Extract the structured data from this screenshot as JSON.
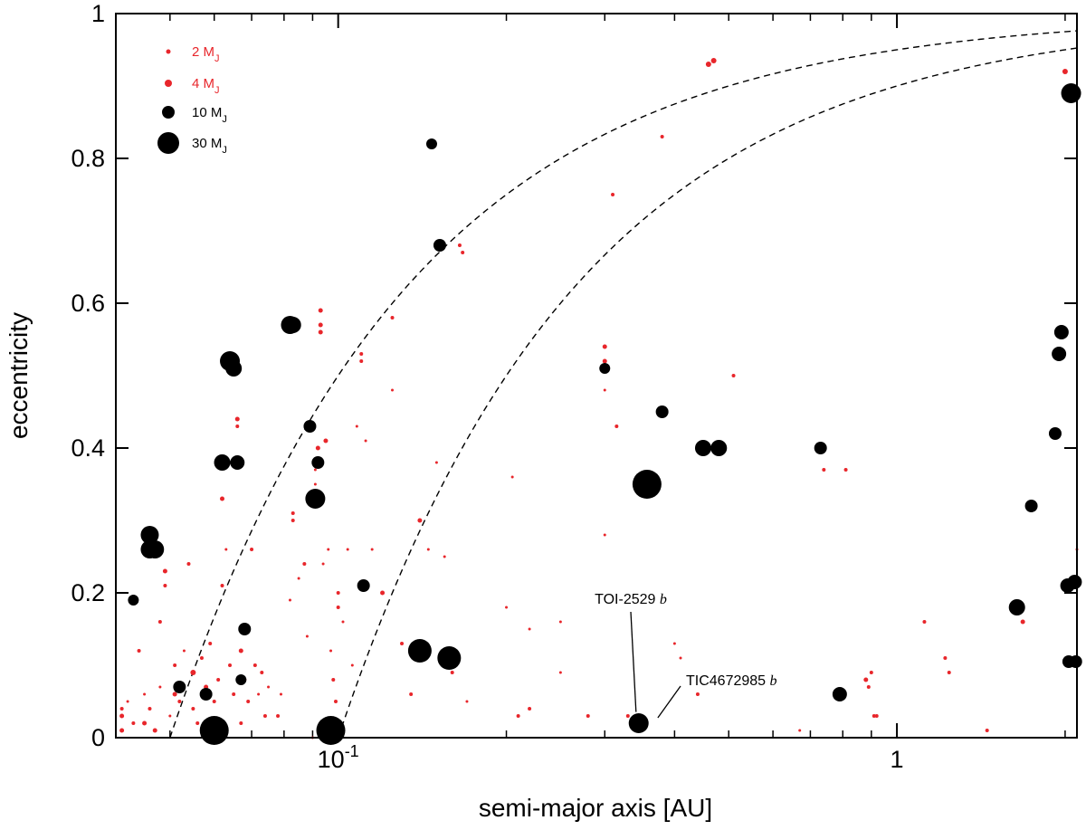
{
  "chart_data": {
    "type": "scatter",
    "xlabel": "semi-major axis [AU]",
    "ylabel": "eccentricity",
    "xscale": "log",
    "xlim": [
      0.04,
      2.1
    ],
    "ylim": [
      0,
      1
    ],
    "x_ticks": [
      {
        "value": 0.1,
        "base": "10",
        "exp": "-1"
      },
      {
        "value": 1,
        "base": "1",
        "exp": ""
      }
    ],
    "y_ticks": [
      {
        "value": 0,
        "label": "0"
      },
      {
        "value": 0.2,
        "label": "0.2"
      },
      {
        "value": 0.4,
        "label": "0.4"
      },
      {
        "value": 0.6,
        "label": "0.6"
      },
      {
        "value": 0.8,
        "label": "0.8"
      },
      {
        "value": 1,
        "label": "1"
      }
    ],
    "grid": false,
    "legend_position": "top-left",
    "colors": {
      "red": "#e8262b",
      "black": "#000000"
    },
    "legend": [
      {
        "mass": 2,
        "color": "red",
        "text": "2 M",
        "sub": "J"
      },
      {
        "mass": 4,
        "color": "red",
        "text": "4 M",
        "sub": "J"
      },
      {
        "mass": 10,
        "color": "black",
        "text": "10 M",
        "sub": "J"
      },
      {
        "mass": 30,
        "color": "black",
        "text": "30 M",
        "sub": "J"
      }
    ],
    "curves": [
      {
        "periastron_au": 0.05,
        "style": "dashed"
      },
      {
        "periastron_au": 0.1,
        "style": "dashed"
      }
    ],
    "annotations": [
      {
        "name": "TOI-2529",
        "letter": "b",
        "point": [
          0.34,
          0.028
        ]
      },
      {
        "name": "TIC4672985",
        "letter": "b",
        "point": [
          0.357,
          0.02
        ]
      }
    ],
    "series": [
      {
        "color": "red",
        "points": [
          [
            0.041,
            0.04,
            2
          ],
          [
            0.041,
            0.03,
            2.5
          ],
          [
            0.041,
            0.01,
            2.5
          ],
          [
            0.042,
            0.05,
            1.5
          ],
          [
            0.043,
            0.02,
            2
          ],
          [
            0.044,
            0.12,
            2
          ],
          [
            0.045,
            0.06,
            1.5
          ],
          [
            0.045,
            0.02,
            2.5
          ],
          [
            0.046,
            0.04,
            2
          ],
          [
            0.047,
            0.01,
            2.5
          ],
          [
            0.048,
            0.07,
            1.5
          ],
          [
            0.048,
            0.16,
            2
          ],
          [
            0.049,
            0.23,
            2.5
          ],
          [
            0.049,
            0.21,
            2
          ],
          [
            0.05,
            0.03,
            1.5
          ],
          [
            0.051,
            0.06,
            2.5
          ],
          [
            0.051,
            0.1,
            2
          ],
          [
            0.052,
            0.05,
            2
          ],
          [
            0.053,
            0.12,
            1.5
          ],
          [
            0.054,
            0.24,
            2
          ],
          [
            0.055,
            0.09,
            3
          ],
          [
            0.055,
            0.04,
            2
          ],
          [
            0.056,
            0.02,
            2
          ],
          [
            0.057,
            0.11,
            2
          ],
          [
            0.058,
            0.07,
            2.5
          ],
          [
            0.059,
            0.13,
            2
          ],
          [
            0.06,
            0.05,
            2
          ],
          [
            0.061,
            0.08,
            2
          ],
          [
            0.062,
            0.33,
            2.5
          ],
          [
            0.062,
            0.21,
            2
          ],
          [
            0.063,
            0.26,
            1.5
          ],
          [
            0.064,
            0.1,
            2
          ],
          [
            0.065,
            0.06,
            2
          ],
          [
            0.066,
            0.44,
            2.5
          ],
          [
            0.066,
            0.43,
            2
          ],
          [
            0.067,
            0.12,
            2.5
          ],
          [
            0.067,
            0.02,
            2
          ],
          [
            0.068,
            0.08,
            2
          ],
          [
            0.069,
            0.05,
            2
          ],
          [
            0.07,
            0.26,
            2
          ],
          [
            0.071,
            0.1,
            2
          ],
          [
            0.072,
            0.06,
            1.5
          ],
          [
            0.073,
            0.09,
            2
          ],
          [
            0.074,
            0.03,
            2
          ],
          [
            0.075,
            0.07,
            1.5
          ],
          [
            0.078,
            0.03,
            2
          ],
          [
            0.079,
            0.06,
            1.5
          ],
          [
            0.082,
            0.19,
            1.5
          ],
          [
            0.083,
            0.31,
            2
          ],
          [
            0.083,
            0.3,
            2
          ],
          [
            0.085,
            0.22,
            1.5
          ],
          [
            0.087,
            0.24,
            2
          ],
          [
            0.088,
            0.14,
            1.5
          ],
          [
            0.09,
            0.0,
            1.5
          ],
          [
            0.091,
            0.37,
            1.5
          ],
          [
            0.091,
            0.35,
            1.5
          ],
          [
            0.092,
            0.4,
            2.5
          ],
          [
            0.093,
            0.59,
            2.5
          ],
          [
            0.093,
            0.57,
            2.5
          ],
          [
            0.093,
            0.56,
            2.5
          ],
          [
            0.094,
            0.24,
            1.5
          ],
          [
            0.095,
            0.41,
            2.5
          ],
          [
            0.096,
            0.26,
            1.5
          ],
          [
            0.097,
            0.12,
            1.5
          ],
          [
            0.098,
            0.08,
            2
          ],
          [
            0.099,
            0.05,
            2
          ],
          [
            0.1,
            0.2,
            2
          ],
          [
            0.1,
            0.18,
            2
          ],
          [
            0.102,
            0.16,
            1.5
          ],
          [
            0.104,
            0.26,
            1.5
          ],
          [
            0.106,
            0.1,
            1.5
          ],
          [
            0.108,
            0.43,
            1.5
          ],
          [
            0.11,
            0.53,
            2
          ],
          [
            0.11,
            0.52,
            2
          ],
          [
            0.112,
            0.41,
            1.5
          ],
          [
            0.115,
            0.26,
            1.5
          ],
          [
            0.12,
            0.2,
            2.5
          ],
          [
            0.125,
            0.48,
            1.5
          ],
          [
            0.125,
            0.58,
            2
          ],
          [
            0.13,
            0.13,
            2
          ],
          [
            0.135,
            0.06,
            2
          ],
          [
            0.14,
            0.3,
            2.5
          ],
          [
            0.145,
            0.26,
            1.5
          ],
          [
            0.15,
            0.38,
            1.5
          ],
          [
            0.155,
            0.25,
            1.5
          ],
          [
            0.16,
            0.1,
            2
          ],
          [
            0.16,
            0.09,
            2
          ],
          [
            0.165,
            0.68,
            2
          ],
          [
            0.167,
            0.67,
            2
          ],
          [
            0.17,
            0.05,
            1.5
          ],
          [
            0.2,
            0.18,
            1.5
          ],
          [
            0.205,
            0.36,
            1.5
          ],
          [
            0.21,
            0.03,
            2
          ],
          [
            0.22,
            0.04,
            2
          ],
          [
            0.22,
            0.15,
            1.5
          ],
          [
            0.25,
            0.16,
            1.5
          ],
          [
            0.25,
            0.09,
            1.5
          ],
          [
            0.28,
            0.03,
            2
          ],
          [
            0.3,
            0.54,
            2.5
          ],
          [
            0.3,
            0.52,
            2.5
          ],
          [
            0.3,
            0.48,
            1.5
          ],
          [
            0.3,
            0.28,
            1.5
          ],
          [
            0.31,
            0.75,
            2
          ],
          [
            0.315,
            0.43,
            2
          ],
          [
            0.33,
            0.03,
            2
          ],
          [
            0.34,
            0.028,
            2
          ],
          [
            0.38,
            0.83,
            2
          ],
          [
            0.4,
            0.13,
            1.5
          ],
          [
            0.41,
            0.11,
            1.5
          ],
          [
            0.44,
            0.06,
            2
          ],
          [
            0.46,
            0.93,
            3
          ],
          [
            0.47,
            0.935,
            3
          ],
          [
            0.51,
            0.5,
            2
          ],
          [
            0.67,
            0.01,
            1.5
          ],
          [
            0.74,
            0.37,
            2
          ],
          [
            0.81,
            0.37,
            2
          ],
          [
            0.88,
            0.08,
            2.5
          ],
          [
            0.89,
            0.07,
            2
          ],
          [
            0.9,
            0.09,
            2
          ],
          [
            0.91,
            0.03,
            2
          ],
          [
            0.92,
            0.03,
            2
          ],
          [
            1.12,
            0.16,
            2
          ],
          [
            1.22,
            0.11,
            2
          ],
          [
            1.24,
            0.09,
            2
          ],
          [
            1.45,
            0.01,
            2
          ],
          [
            1.68,
            0.16,
            2.5
          ],
          [
            2.0,
            0.92,
            3
          ],
          [
            2.1,
            0.26,
            1.5
          ]
        ]
      },
      {
        "color": "black",
        "points": [
          [
            0.043,
            0.19,
            6
          ],
          [
            0.046,
            0.28,
            10
          ],
          [
            0.046,
            0.26,
            10
          ],
          [
            0.047,
            0.26,
            10
          ],
          [
            0.052,
            0.07,
            7
          ],
          [
            0.058,
            0.06,
            7
          ],
          [
            0.06,
            0.01,
            16
          ],
          [
            0.062,
            0.38,
            9
          ],
          [
            0.064,
            0.52,
            11
          ],
          [
            0.065,
            0.51,
            9
          ],
          [
            0.066,
            0.38,
            8
          ],
          [
            0.067,
            0.08,
            6
          ],
          [
            0.068,
            0.15,
            7
          ],
          [
            0.082,
            0.57,
            10
          ],
          [
            0.083,
            0.57,
            9
          ],
          [
            0.089,
            0.43,
            7
          ],
          [
            0.091,
            0.33,
            11
          ],
          [
            0.092,
            0.38,
            7
          ],
          [
            0.097,
            0.01,
            16
          ],
          [
            0.111,
            0.21,
            7
          ],
          [
            0.14,
            0.12,
            13
          ],
          [
            0.147,
            0.82,
            6
          ],
          [
            0.152,
            0.68,
            7
          ],
          [
            0.158,
            0.11,
            13
          ],
          [
            0.3,
            0.51,
            6
          ],
          [
            0.345,
            0.02,
            11
          ],
          [
            0.357,
            0.35,
            16
          ],
          [
            0.38,
            0.45,
            7
          ],
          [
            0.45,
            0.4,
            9
          ],
          [
            0.48,
            0.4,
            9
          ],
          [
            0.73,
            0.4,
            7
          ],
          [
            0.79,
            0.06,
            8
          ],
          [
            1.64,
            0.18,
            9
          ],
          [
            1.74,
            0.32,
            7
          ],
          [
            1.92,
            0.42,
            7
          ],
          [
            1.95,
            0.53,
            8
          ],
          [
            1.97,
            0.56,
            8
          ],
          [
            2.02,
            0.21,
            8
          ],
          [
            2.03,
            0.105,
            7
          ],
          [
            2.05,
            0.89,
            11
          ],
          [
            2.08,
            0.215,
            8
          ],
          [
            2.09,
            0.105,
            7
          ]
        ]
      }
    ]
  }
}
